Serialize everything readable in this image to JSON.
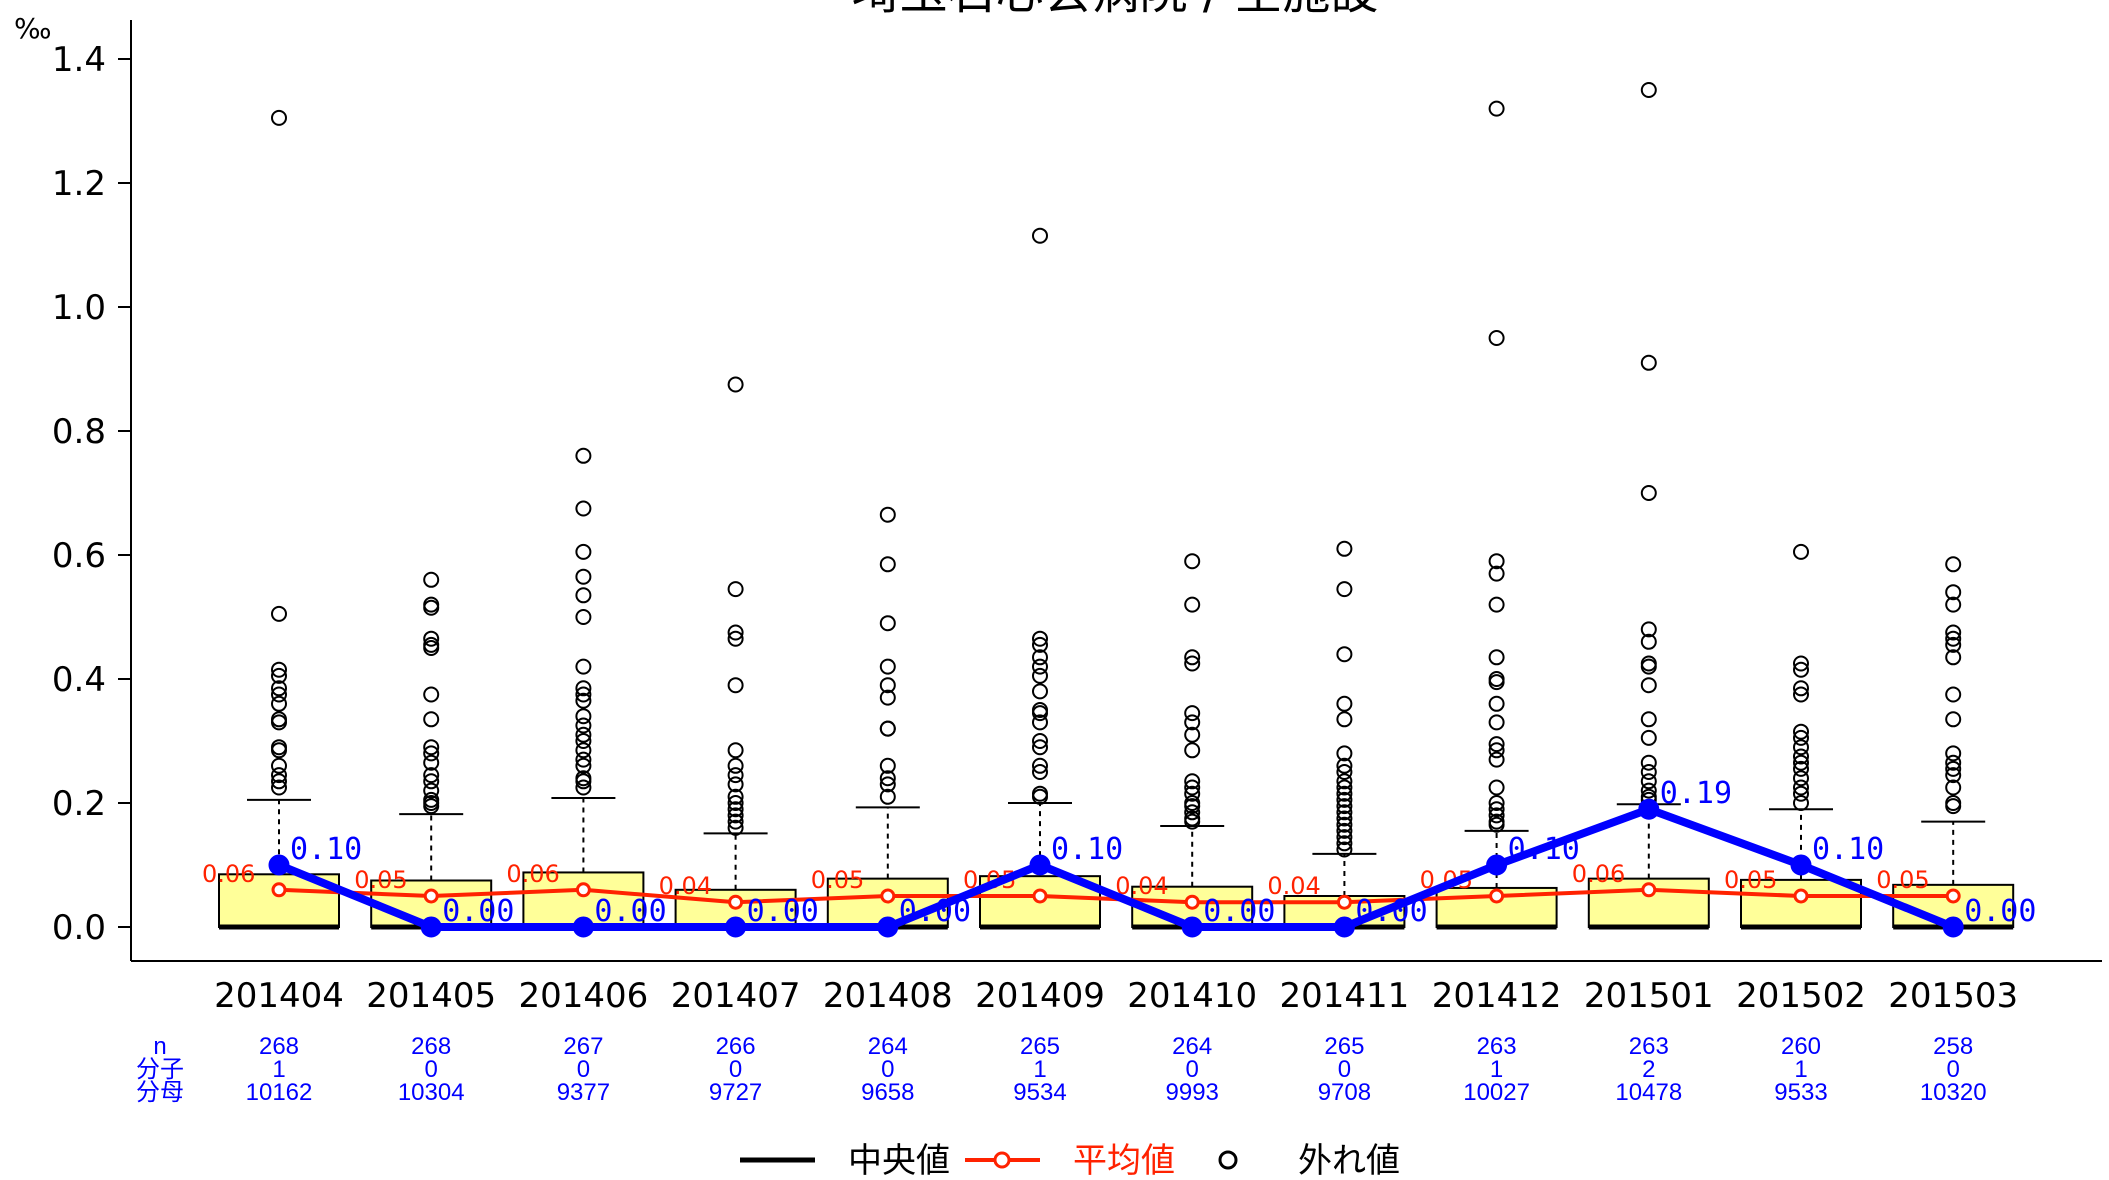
{
  "chart_data": {
    "type": "box",
    "title": "埼玉石心会病院 / 全施設",
    "ylabel": "‰",
    "ylim": [
      -0.05,
      1.45
    ],
    "yticks": [
      "0.0",
      "0.2",
      "0.4",
      "0.6",
      "0.8",
      "1.0",
      "1.2",
      "1.4"
    ],
    "grid": false,
    "categories": [
      "201404",
      "201405",
      "201406",
      "201407",
      "201408",
      "201409",
      "201410",
      "201411",
      "201412",
      "201501",
      "201502",
      "201503"
    ],
    "box": {
      "median": [
        0,
        0,
        0,
        0,
        0,
        0,
        0,
        0,
        0,
        0,
        0,
        0
      ],
      "q3": [
        0.085,
        0.075,
        0.088,
        0.06,
        0.078,
        0.082,
        0.065,
        0.05,
        0.063,
        0.078,
        0.076,
        0.068
      ],
      "whisker_high": [
        0.205,
        0.182,
        0.208,
        0.151,
        0.193,
        0.2,
        0.163,
        0.118,
        0.155,
        0.198,
        0.19,
        0.17
      ]
    },
    "outliers": [
      [
        1.305,
        0.505,
        0.415,
        0.405,
        0.385,
        0.375,
        0.36,
        0.335,
        0.33,
        0.29,
        0.285,
        0.26,
        0.245,
        0.235,
        0.225
      ],
      [
        0.56,
        0.52,
        0.515,
        0.465,
        0.455,
        0.45,
        0.375,
        0.335,
        0.29,
        0.28,
        0.265,
        0.245,
        0.235,
        0.22,
        0.205,
        0.2,
        0.195
      ],
      [
        0.76,
        0.675,
        0.605,
        0.565,
        0.535,
        0.5,
        0.42,
        0.385,
        0.375,
        0.365,
        0.34,
        0.325,
        0.31,
        0.3,
        0.285,
        0.27,
        0.26,
        0.24,
        0.235,
        0.225
      ],
      [
        0.875,
        0.545,
        0.475,
        0.465,
        0.39,
        0.285,
        0.26,
        0.245,
        0.23,
        0.21,
        0.2,
        0.19,
        0.18,
        0.17,
        0.16
      ],
      [
        0.665,
        0.585,
        0.49,
        0.42,
        0.39,
        0.37,
        0.32,
        0.32,
        0.26,
        0.24,
        0.23,
        0.21
      ],
      [
        1.115,
        0.465,
        0.455,
        0.435,
        0.42,
        0.405,
        0.38,
        0.35,
        0.345,
        0.33,
        0.3,
        0.29,
        0.26,
        0.25,
        0.215,
        0.21
      ],
      [
        0.59,
        0.52,
        0.435,
        0.425,
        0.345,
        0.33,
        0.31,
        0.285,
        0.235,
        0.225,
        0.215,
        0.2,
        0.195,
        0.185,
        0.175,
        0.17
      ],
      [
        0.61,
        0.545,
        0.44,
        0.36,
        0.335,
        0.28,
        0.26,
        0.25,
        0.235,
        0.225,
        0.215,
        0.205,
        0.195,
        0.185,
        0.175,
        0.165,
        0.155,
        0.145,
        0.135,
        0.125
      ],
      [
        1.32,
        0.95,
        0.59,
        0.57,
        0.52,
        0.435,
        0.4,
        0.395,
        0.36,
        0.33,
        0.295,
        0.285,
        0.27,
        0.225,
        0.2,
        0.19,
        0.18,
        0.17,
        0.165
      ],
      [
        1.35,
        0.91,
        0.7,
        0.48,
        0.46,
        0.425,
        0.42,
        0.39,
        0.335,
        0.305,
        0.265,
        0.25,
        0.235,
        0.22,
        0.21,
        0.205
      ],
      [
        0.605,
        0.425,
        0.415,
        0.385,
        0.375,
        0.315,
        0.305,
        0.29,
        0.275,
        0.265,
        0.255,
        0.24,
        0.225,
        0.215,
        0.2
      ],
      [
        0.585,
        0.54,
        0.52,
        0.475,
        0.465,
        0.455,
        0.435,
        0.375,
        0.335,
        0.28,
        0.265,
        0.255,
        0.245,
        0.225,
        0.2,
        0.195
      ]
    ],
    "series": [
      {
        "name": "",
        "values": [
          0.1,
          0.0,
          0.0,
          0.0,
          0.0,
          0.1,
          0.0,
          0.0,
          0.1,
          0.19,
          0.1,
          0.0
        ],
        "labels": [
          "0.10",
          "0.00",
          "0.00",
          "0.00",
          "0.00",
          "0.10",
          "0.00",
          "0.00",
          "0.10",
          "0.19",
          "0.10",
          "0.00"
        ],
        "color": "#0000ff"
      },
      {
        "name": "平均値",
        "values": [
          0.06,
          0.05,
          0.06,
          0.04,
          0.05,
          0.05,
          0.04,
          0.04,
          0.05,
          0.06,
          0.05,
          0.05
        ],
        "labels": [
          "0.06",
          "0.05",
          "0.06",
          "0.04",
          "0.05",
          "0.05",
          "0.04",
          "0.04",
          "0.05",
          "0.06",
          "0.05",
          "0.05"
        ],
        "color": "#ff2200"
      }
    ],
    "table": {
      "row_labels": [
        "n",
        "分子",
        "分母"
      ],
      "n": [
        "268",
        "268",
        "267",
        "266",
        "264",
        "265",
        "264",
        "265",
        "263",
        "263",
        "260",
        "258"
      ],
      "numerator": [
        "1",
        "0",
        "0",
        "0",
        "0",
        "1",
        "0",
        "0",
        "1",
        "2",
        "1",
        "0"
      ],
      "denominator": [
        "10162",
        "10304",
        "9377",
        "9727",
        "9658",
        "9534",
        "9993",
        "9708",
        "10027",
        "10478",
        "9533",
        "10320"
      ]
    },
    "legend": {
      "position": "bottom",
      "items": [
        "中央値",
        "平均値",
        "外れ値"
      ]
    },
    "colors": {
      "box_fill": "#ffff99",
      "mean_line": "#ff2200",
      "rate_line": "#0000ff",
      "table_text": "#0000ff"
    }
  }
}
